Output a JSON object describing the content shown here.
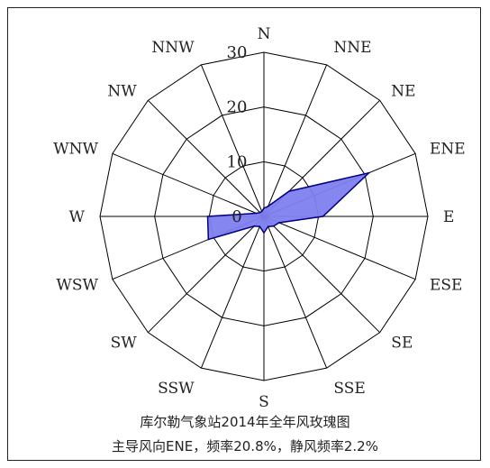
{
  "chart_data": {
    "type": "radar",
    "directions": [
      "N",
      "NNE",
      "NE",
      "ENE",
      "E",
      "ESE",
      "SE",
      "SSE",
      "S",
      "SSW",
      "SW",
      "WSW",
      "W",
      "WNW",
      "NW",
      "NNW"
    ],
    "values": [
      1.5,
      2.0,
      6.5,
      20.8,
      10.8,
      3.0,
      2.5,
      2.0,
      3.0,
      2.0,
      2.5,
      11.0,
      10.3,
      1.5,
      1.0,
      1.0
    ],
    "rmax": 30,
    "ticks": [
      "0",
      "10",
      "20",
      "30"
    ],
    "tick_values": [
      0,
      10,
      20,
      30
    ],
    "grid": true,
    "fill_color": "#7f7ff0",
    "line_color": "#000080"
  },
  "captions": {
    "line1": "库尔勒气象站2014年全年风玫瑰图",
    "line2": "主导风向ENE，频率20.8%，静风频率2.2%"
  }
}
